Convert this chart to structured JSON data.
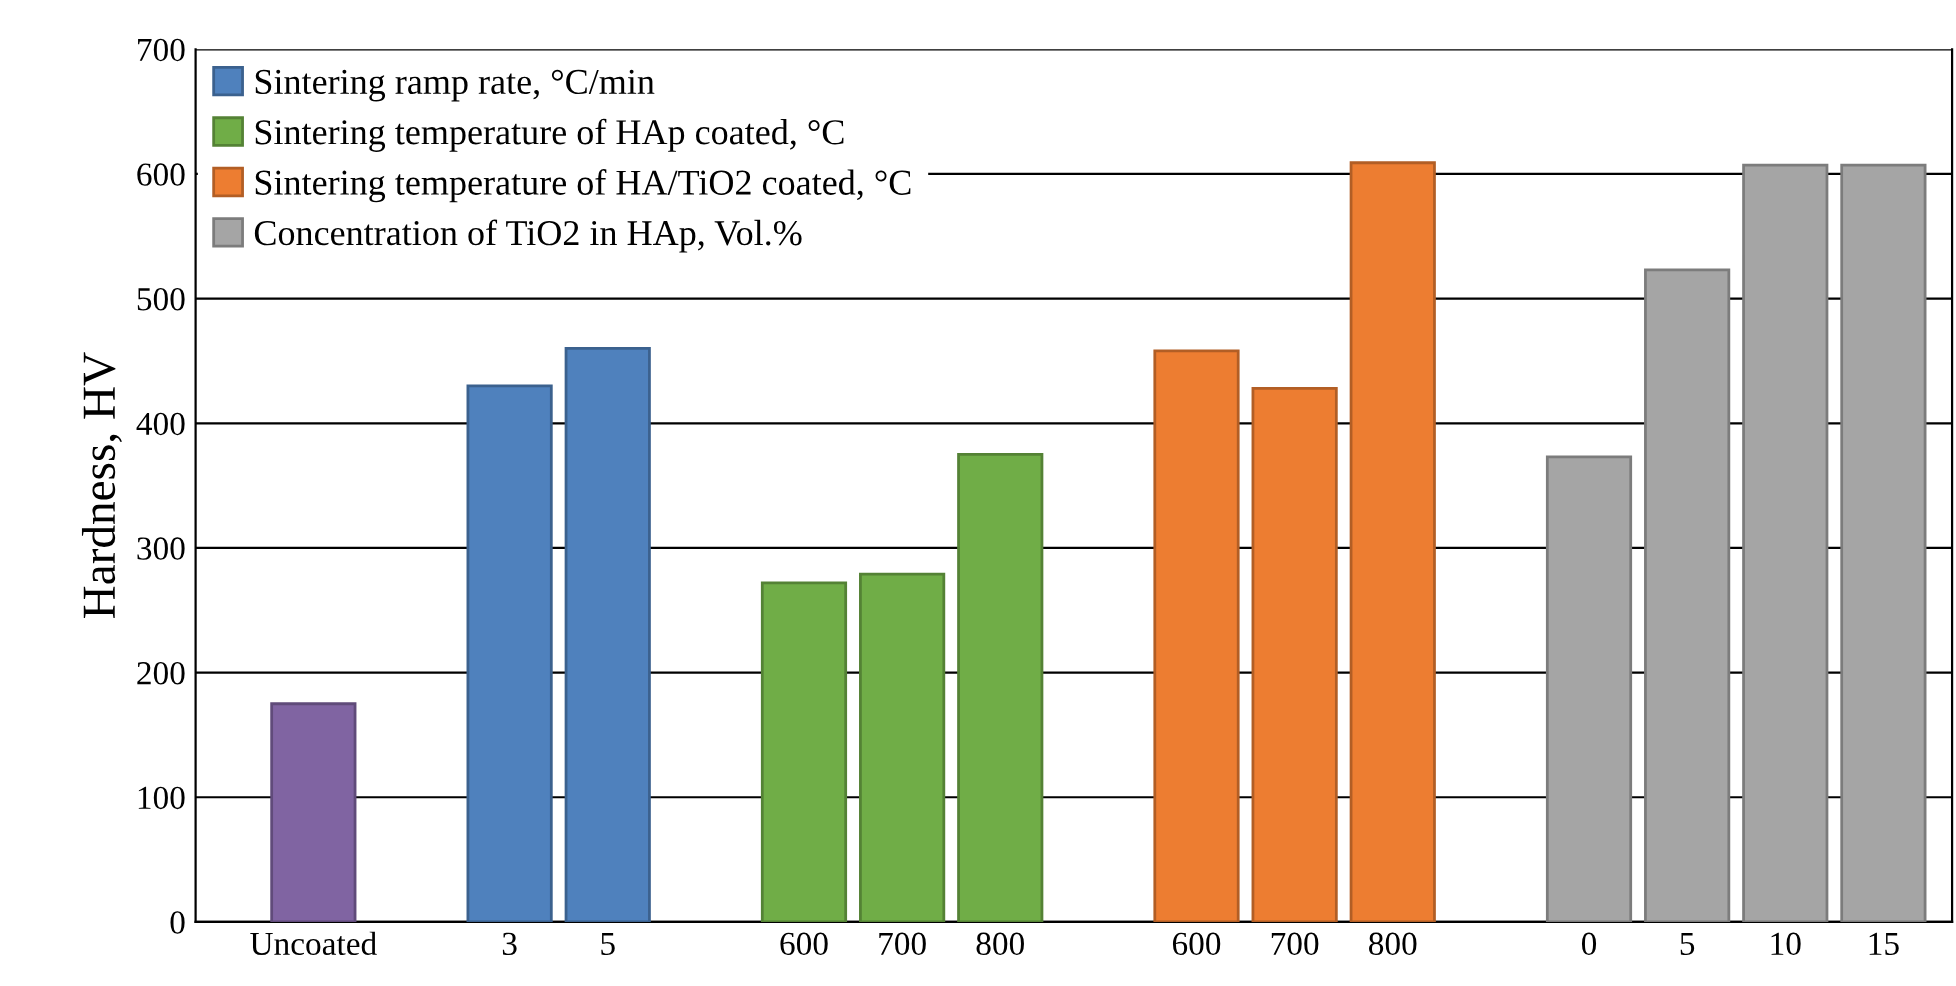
{
  "chart_data": {
    "type": "bar",
    "ylabel": "Hardness, HV",
    "categories": [
      "Uncoated",
      null,
      "3",
      "5",
      null,
      "600",
      "700",
      "800",
      null,
      "600",
      "700",
      "800",
      null,
      "0",
      "5",
      "10",
      "15"
    ],
    "series": [
      {
        "color": "#8064a2",
        "values": [
          175,
          null,
          null,
          null,
          null,
          null,
          null,
          null,
          null,
          null,
          null,
          null,
          null,
          null,
          null,
          null,
          null
        ]
      },
      {
        "name": "Sintering ramp rate, °C/min",
        "color": "#4f81bd",
        "values": [
          null,
          null,
          430,
          460,
          null,
          null,
          null,
          null,
          null,
          null,
          null,
          null,
          null,
          null,
          null,
          null,
          null
        ]
      },
      {
        "name": "Sintering temperature of HAp coated, °C",
        "color": "#70ad47",
        "values": [
          null,
          null,
          null,
          null,
          null,
          272,
          279,
          375,
          null,
          null,
          null,
          null,
          null,
          null,
          null,
          null,
          null
        ]
      },
      {
        "name": "Sintering temperature of HA/TiO2 coated, °C",
        "color": "#ed7d31",
        "values": [
          null,
          null,
          null,
          null,
          null,
          null,
          null,
          null,
          null,
          458,
          428,
          609,
          null,
          null,
          null,
          null,
          null
        ]
      },
      {
        "name": "Concentration of TiO2 in HAp, Vol.%",
        "color": "#a5a5a5",
        "values": [
          null,
          null,
          null,
          null,
          null,
          null,
          null,
          null,
          null,
          null,
          null,
          null,
          null,
          373,
          523,
          607,
          607
        ]
      }
    ],
    "ylim": [
      0,
      700
    ],
    "yticks": [
      0,
      100,
      200,
      300,
      400,
      500,
      600,
      700
    ],
    "grid": "y",
    "legend": "top left"
  }
}
